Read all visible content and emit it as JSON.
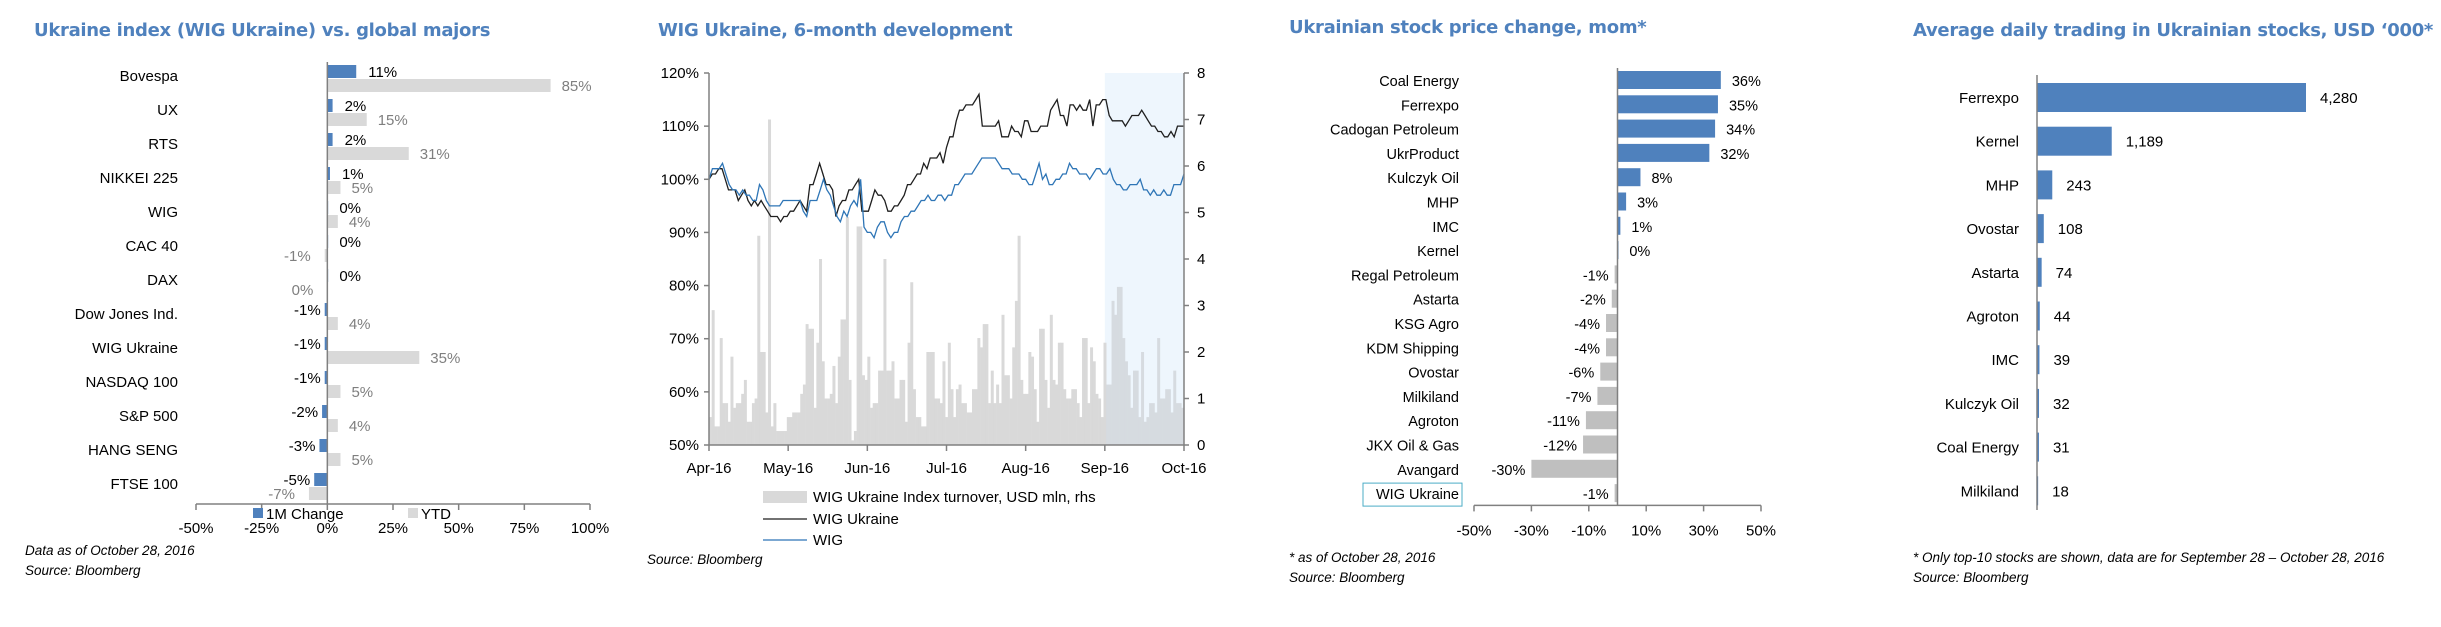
{
  "chart_data": [
    {
      "id": "global_majors",
      "type": "bar",
      "orientation": "horizontal",
      "title": "Ukraine index (WIG Ukraine) vs. global majors",
      "categories": [
        "Bovespa",
        "UX",
        "RTS",
        "NIKKEI 225",
        "WIG",
        "CAC 40",
        "DAX",
        "Dow Jones Ind.",
        "WIG Ukraine",
        "NASDAQ 100",
        "S&P 500",
        "HANG SENG",
        "FTSE 100"
      ],
      "series": [
        {
          "name": "1M Change",
          "color": "#4f81bd",
          "values": [
            11,
            2,
            2,
            1,
            0,
            0,
            0,
            -1,
            -1,
            -1,
            -2,
            -3,
            -5
          ],
          "labels": [
            "11%",
            "2%",
            "2%",
            "1%",
            "0%",
            "0%",
            "0%",
            "-1%",
            "-1%",
            "-1%",
            "-2%",
            "-3%",
            "-5%"
          ]
        },
        {
          "name": "YTD",
          "color": "#d9d9d9",
          "values": [
            85,
            15,
            31,
            5,
            4,
            -1,
            0,
            4,
            35,
            5,
            4,
            5,
            -7
          ],
          "labels": [
            "85%",
            "15%",
            "31%",
            "5%",
            "4%",
            "-1%",
            "0%",
            "4%",
            "35%",
            "5%",
            "4%",
            "5%",
            "-7%"
          ]
        }
      ],
      "xlim": [
        -50,
        100
      ],
      "xticks": [
        -50,
        -25,
        0,
        25,
        50,
        75,
        100
      ],
      "xtick_labels": [
        "-50%",
        "-25%",
        "0%",
        "25%",
        "50%",
        "75%",
        "100%"
      ],
      "legend_position": "bottom",
      "notes": [
        "Data as of October 28, 2016",
        "Source: Bloomberg"
      ]
    },
    {
      "id": "wig_6month",
      "type": "line",
      "title": "WIG Ukraine, 6-month development",
      "x_tick_labels": [
        "Apr-16",
        "May-16",
        "Jun-16",
        "Jul-16",
        "Aug-16",
        "Sep-16",
        "Oct-16"
      ],
      "ylim": [
        50,
        120
      ],
      "yticks": [
        50,
        60,
        70,
        80,
        90,
        100,
        110,
        120
      ],
      "ytick_labels": [
        "50%",
        "60%",
        "70%",
        "80%",
        "90%",
        "100%",
        "110%",
        "120%"
      ],
      "y2lim": [
        0,
        8
      ],
      "y2ticks": [
        0,
        1,
        2,
        3,
        4,
        5,
        6,
        7,
        8
      ],
      "y2tick_labels": [
        "0",
        "1",
        "2",
        "3",
        "4",
        "5",
        "6",
        "7",
        "8"
      ],
      "highlight_from_month_index": 5,
      "highlight_color": "#eef6fd",
      "series": [
        {
          "name": "WIG Ukraine Index turnover, USD mln, rhs",
          "kind": "bar",
          "axis": "right",
          "color": "#d9d9d9",
          "values": [
            0.6,
            2.9,
            0.4,
            0.4,
            2.3,
            0.9,
            0.9,
            0.5,
            1.9,
            0.8,
            0.9,
            0.9,
            1.1,
            1.4,
            0.5,
            0.5,
            0.9,
            1.0,
            4.5,
            2.0,
            2.0,
            0.7,
            7.0,
            0.4,
            0.9,
            0.3,
            0.3,
            0.3,
            0.3,
            0.6,
            0.6,
            0.7,
            0.7,
            0.7,
            1.1,
            1.3,
            2.6,
            2.5,
            2.5,
            0.8,
            2.2,
            4.0,
            1.8,
            1.0,
            1.0,
            1.1,
            1.7,
            0.9,
            1.9,
            2.7,
            2.7,
            4.9,
            1.4,
            0.1,
            0.3,
            4.7,
            4.7,
            1.5,
            1.4,
            1.9,
            0.8,
            0.9,
            0.9,
            1.6,
            1.6,
            4.0,
            1.6,
            1.6,
            1.8,
            1.0,
            1.0,
            1.4,
            1.4,
            0.5,
            2.2,
            3.5,
            1.2,
            0.6,
            0.6,
            0.4,
            0.4,
            2.0,
            2.0,
            2.0,
            1.0,
            1.0,
            0.9,
            1.8,
            0.6,
            2.2,
            1.2,
            0.6,
            1.2,
            1.3,
            0.9,
            0.9,
            0.7,
            0.7,
            1.2,
            1.2,
            2.3,
            2.1,
            2.6,
            2.6,
            0.9,
            1.6,
            0.9,
            1.3,
            0.9,
            2.8,
            1.5,
            1.5,
            1.0,
            2.1,
            3.1,
            4.5,
            1.4,
            1.1,
            1.1,
            2.0,
            1.9,
            1.2,
            0.5,
            2.5,
            2.5,
            1.4,
            0.8,
            2.8,
            1.4,
            1.3,
            2.2,
            2.2,
            1.2,
            1.0,
            1.0,
            1.2,
            1.2,
            0.9,
            0.6,
            2.3,
            2.3,
            0.9,
            2.1,
            1.8,
            1.1,
            1.0,
            0.6,
            2.2,
            1.3,
            1.3,
            3.1,
            2.8,
            3.4,
            3.4,
            2.3,
            1.8,
            1.5,
            0.8,
            1.6,
            1.6,
            0.6,
            2.0,
            0.5,
            0.6,
            0.9,
            0.9,
            0.7,
            2.3,
            1.0,
            1.0,
            1.2,
            1.2,
            0.7,
            1.6,
            0.9,
            0.9,
            0.8
          ]
        },
        {
          "name": "WIG Ukraine",
          "kind": "line",
          "axis": "left",
          "color": "#1f1f1f",
          "values": [
            100,
            101,
            101,
            102,
            102,
            100,
            98,
            98,
            98,
            96,
            97,
            98,
            96,
            95,
            96,
            95,
            96,
            95,
            94,
            93,
            93,
            93,
            92,
            93,
            93,
            94,
            94,
            95,
            96,
            95,
            94,
            99,
            99,
            101,
            103,
            101,
            99,
            99,
            98,
            93,
            95,
            96,
            96,
            98,
            98,
            99,
            100,
            94,
            94,
            94,
            96,
            98,
            97,
            97,
            96,
            94,
            94,
            95,
            95,
            96,
            97,
            99,
            99,
            100,
            101,
            101,
            103,
            102,
            104,
            104,
            104,
            105,
            103,
            106,
            108,
            108,
            111,
            113,
            113,
            114,
            114,
            114,
            115,
            116,
            110,
            110,
            110,
            110,
            110,
            111,
            108,
            108,
            108,
            110,
            109,
            109,
            108,
            111,
            111,
            109,
            109,
            109,
            110,
            110,
            110,
            113,
            114,
            115,
            112,
            112,
            110,
            114,
            114,
            113,
            114,
            113,
            113,
            115,
            110,
            114,
            114,
            115,
            115,
            112,
            111,
            111,
            111,
            111,
            110,
            111,
            112,
            112,
            112,
            113,
            112,
            111,
            110,
            110,
            109,
            109,
            108,
            108,
            109,
            108,
            110,
            110,
            110
          ],
          "values_note": "index level as % of start"
        },
        {
          "name": "WIG",
          "kind": "line",
          "axis": "left",
          "color": "#2e75b6",
          "values": [
            100,
            102,
            102,
            102,
            103,
            101,
            99,
            98,
            98,
            97,
            98,
            97,
            97,
            96,
            96,
            99,
            98,
            96,
            95,
            95,
            95,
            95,
            96,
            96,
            96,
            96,
            96,
            96,
            94,
            93,
            96,
            96,
            96,
            98,
            100,
            98,
            97,
            95,
            93,
            92,
            94,
            93,
            95,
            96,
            95,
            100,
            91,
            90,
            90,
            89,
            91,
            92,
            92,
            90,
            89,
            90,
            90,
            92,
            93,
            93,
            94,
            94,
            95,
            96,
            96,
            97,
            96,
            96,
            97,
            97,
            96,
            97,
            97,
            99,
            99,
            100,
            101,
            101,
            101,
            102,
            103,
            104,
            104,
            104,
            104,
            104,
            103,
            102,
            102,
            102,
            101,
            101,
            101,
            100,
            100,
            99,
            99,
            101,
            103,
            100,
            101,
            99,
            99,
            100,
            100,
            101,
            101,
            103,
            102,
            102,
            101,
            101,
            101,
            100,
            101,
            102,
            102,
            101,
            101,
            102,
            100,
            99,
            99,
            98,
            98,
            99,
            99,
            99,
            100,
            98,
            98,
            97,
            98,
            97,
            97,
            98,
            97,
            97,
            99,
            99,
            99,
            101
          ],
          "values_note": "index level as % of start"
        }
      ],
      "legend_position": "bottom",
      "notes": [
        "Source: Bloomberg"
      ]
    },
    {
      "id": "stock_price_change",
      "type": "bar",
      "orientation": "horizontal",
      "title": "Ukrainian stock price change, mom*",
      "categories": [
        "Coal Energy",
        "Ferrexpo",
        "Cadogan Petroleum",
        "UkrProduct",
        "Kulczyk Oil",
        "MHP",
        "IMC",
        "Kernel",
        "Regal Petroleum",
        "Astarta",
        "KSG Agro",
        "KDM Shipping",
        "Ovostar",
        "Milkiland",
        "Agroton",
        "JKX Oil & Gas",
        "Avangard",
        "WIG Ukraine"
      ],
      "values": [
        36,
        35,
        34,
        32,
        8,
        3,
        1,
        0.3,
        -1,
        -2,
        -4,
        -4,
        -6,
        -7,
        -11,
        -12,
        -30,
        -1
      ],
      "labels": [
        "36%",
        "35%",
        "34%",
        "32%",
        "8%",
        "3%",
        "1%",
        "0%",
        "-1%",
        "-2%",
        "-4%",
        "-4%",
        "-6%",
        "-7%",
        "-11%",
        "-12%",
        "-30%",
        "-1%"
      ],
      "positive_color": "#4f81bd",
      "negative_color": "#bfbfbf",
      "highlighted_category": "WIG Ukraine",
      "xlim": [
        -50,
        50
      ],
      "xticks": [
        -50,
        -30,
        -10,
        10,
        30,
        50
      ],
      "xtick_labels": [
        "-50%",
        "-30%",
        "-10%",
        "10%",
        "30%",
        "50%"
      ],
      "notes": [
        "* as of October 28, 2016",
        "Source: Bloomberg"
      ]
    },
    {
      "id": "avg_daily_trading",
      "type": "bar",
      "orientation": "horizontal",
      "title": "Average daily trading in Ukrainian stocks, USD ‘000*",
      "categories": [
        "Ferrexpo",
        "Kernel",
        "MHP",
        "Ovostar",
        "Astarta",
        "Agroton",
        "IMC",
        "Kulczyk Oil",
        "Coal Energy",
        "Milkiland"
      ],
      "values": [
        4280,
        1189,
        243,
        108,
        74,
        44,
        39,
        32,
        31,
        18
      ],
      "labels": [
        "4,280",
        "1,189",
        "243",
        "108",
        "74",
        "44",
        "39",
        "32",
        "31",
        "18"
      ],
      "color": "#4f81bd",
      "xlim": [
        0,
        5000
      ],
      "notes": [
        "* Only top-10 stocks are shown, data are for September 28 – October 28, 2016",
        "Source: Bloomberg"
      ]
    }
  ]
}
